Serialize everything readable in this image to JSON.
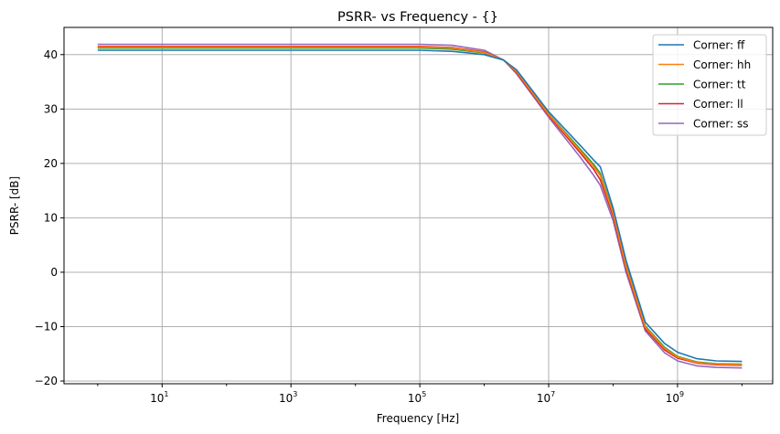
{
  "chart_data": {
    "type": "line",
    "title": "PSRR- vs Frequency - {}",
    "xlabel": "Frequency [Hz]",
    "ylabel": "PSRR- [dB]",
    "xscale": "log",
    "xlim": [
      0.3,
      30000000000
    ],
    "ylim": [
      -20.5,
      45
    ],
    "grid": true,
    "legend_placement": "top-right",
    "xticks": [
      {
        "v": 1,
        "label": "10",
        "exp": "1"
      },
      {
        "v": 3,
        "label": "10",
        "exp": "3"
      },
      {
        "v": 5,
        "label": "10",
        "exp": "5"
      },
      {
        "v": 7,
        "label": "10",
        "exp": "7"
      },
      {
        "v": 9,
        "label": "10",
        "exp": "9"
      }
    ],
    "yticks": [
      -20,
      -10,
      0,
      10,
      20,
      30,
      40
    ],
    "x_log10": [
      0,
      1,
      2,
      3,
      4,
      5,
      5.5,
      6,
      6.3,
      6.5,
      7,
      7.5,
      7.7,
      7.8,
      8,
      8.2,
      8.5,
      8.8,
      9,
      9.3,
      9.6,
      10
    ],
    "series": [
      {
        "name": "Corner: ff",
        "color": "#1f77b4",
        "values": [
          40.8,
          40.8,
          40.8,
          40.8,
          40.8,
          40.8,
          40.6,
          40.0,
          39.0,
          37.2,
          29.5,
          23.2,
          20.6,
          19.4,
          11.8,
          2.2,
          -9.2,
          -13.1,
          -14.7,
          -15.9,
          -16.3,
          -16.4
        ]
      },
      {
        "name": "Corner: hh",
        "color": "#ff7f0e",
        "values": [
          41.4,
          41.4,
          41.4,
          41.4,
          41.4,
          41.4,
          41.2,
          40.4,
          39.0,
          36.9,
          29.0,
          22.2,
          19.4,
          17.8,
          10.8,
          1.1,
          -10.1,
          -14.0,
          -15.6,
          -16.6,
          -16.9,
          -17.0
        ]
      },
      {
        "name": "Corner: tt",
        "color": "#2ca02c",
        "values": [
          41.2,
          41.2,
          41.2,
          41.2,
          41.2,
          41.2,
          41.0,
          40.3,
          39.0,
          36.9,
          29.1,
          22.5,
          19.8,
          18.2,
          11.0,
          1.4,
          -9.9,
          -13.8,
          -15.5,
          -16.5,
          -16.8,
          -16.9
        ]
      },
      {
        "name": "Corner: ll",
        "color": "#d62728",
        "values": [
          41.5,
          41.5,
          41.5,
          41.5,
          41.5,
          41.5,
          41.3,
          40.5,
          39.0,
          36.7,
          28.8,
          21.8,
          18.9,
          17.0,
          10.3,
          0.7,
          -10.4,
          -14.3,
          -15.8,
          -16.7,
          -17.0,
          -17.1
        ]
      },
      {
        "name": "Corner: ss",
        "color": "#9467bd",
        "values": [
          41.9,
          41.9,
          41.9,
          41.9,
          41.9,
          41.9,
          41.7,
          40.8,
          39.0,
          36.5,
          28.5,
          21.0,
          17.8,
          16.0,
          9.5,
          0.0,
          -10.8,
          -14.8,
          -16.3,
          -17.2,
          -17.5,
          -17.6
        ]
      }
    ]
  }
}
